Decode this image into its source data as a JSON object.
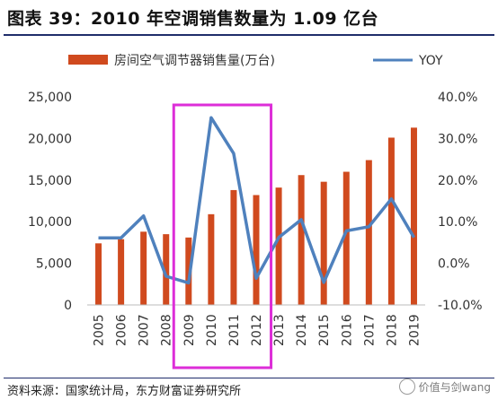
{
  "title": "图表 39：2010 年空调销售数量为 1.09 亿台",
  "source": "资料来源：国家统计局，东方财富证券研究所",
  "watermark": "价值与剑wang",
  "colors": {
    "bar": "#d04a1e",
    "line": "#4f81bd",
    "highlight": "#dd2ed8"
  },
  "chart_data": {
    "type": "bar",
    "categories": [
      "2005",
      "2006",
      "2007",
      "2008",
      "2009",
      "2010",
      "2011",
      "2012",
      "2013",
      "2014",
      "2015",
      "2016",
      "2017",
      "2018",
      "2019"
    ],
    "series": [
      {
        "name": "房间空气调节器销售量(万台)",
        "type": "bar",
        "axis": "left",
        "values": [
          7400,
          7900,
          8800,
          8500,
          8100,
          10900,
          13800,
          13200,
          14100,
          15600,
          14800,
          16000,
          17400,
          20100,
          21300
        ]
      },
      {
        "name": "YOY",
        "type": "line",
        "axis": "right",
        "values": [
          0.061,
          0.061,
          0.114,
          -0.031,
          -0.047,
          0.35,
          0.264,
          -0.036,
          0.062,
          0.105,
          -0.046,
          0.078,
          0.088,
          0.155,
          0.062
        ]
      }
    ],
    "y_left": {
      "min": 0,
      "max": 25000,
      "ticks": [
        "0",
        "5,000",
        "10,000",
        "15,000",
        "20,000",
        "25,000"
      ]
    },
    "y_right": {
      "min": -0.1,
      "max": 0.4,
      "ticks": [
        "-10.0%",
        "0.0%",
        "10.0%",
        "20.0%",
        "30.0%",
        "40.0%"
      ]
    },
    "highlight_categories": [
      "2009",
      "2012"
    ],
    "legend_position": "top"
  }
}
